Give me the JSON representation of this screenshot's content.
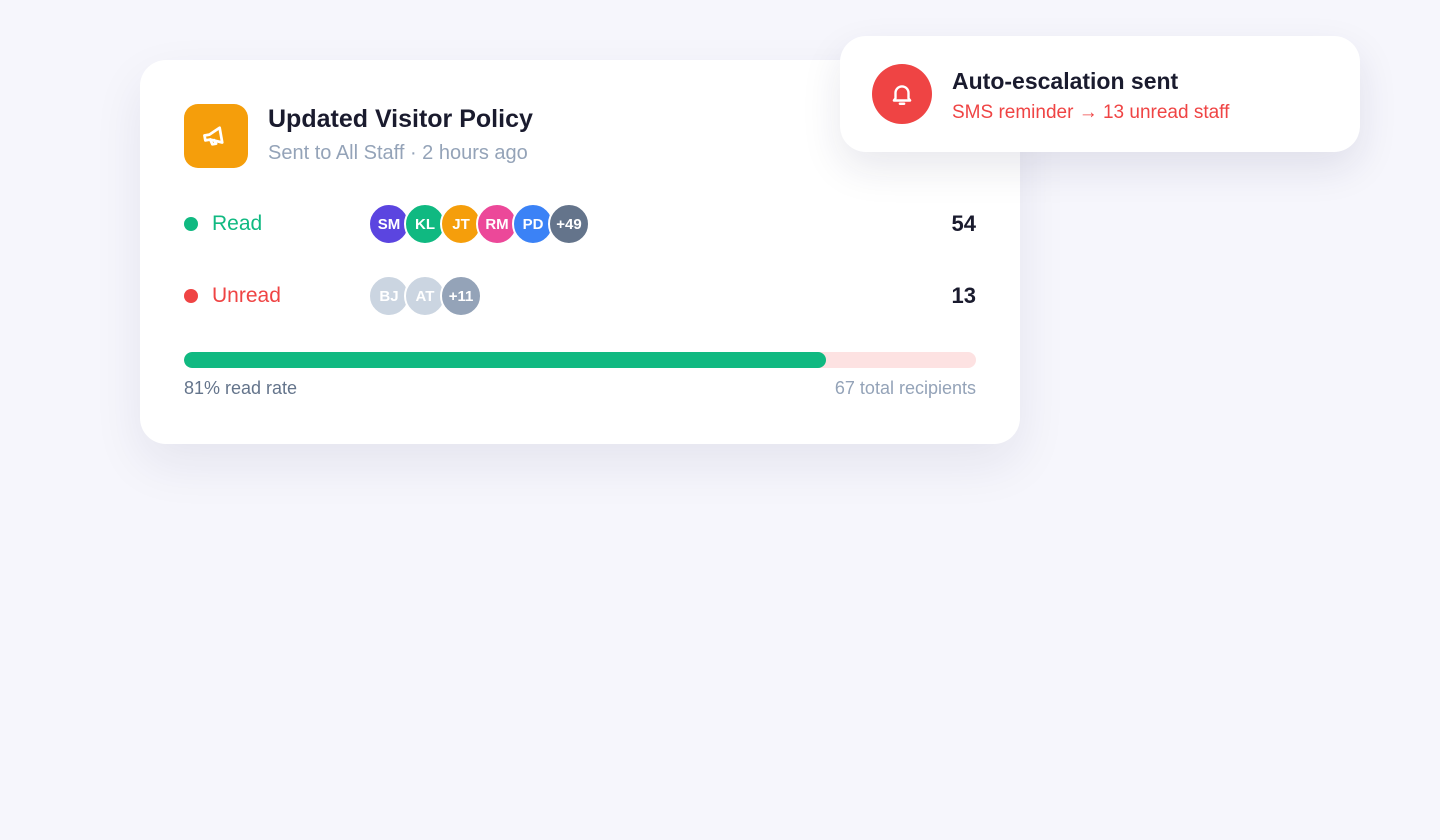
{
  "announcement": {
    "title": "Updated Visitor Policy",
    "subtitle": "Sent to All Staff · 2 hours ago",
    "icon": "megaphone-icon",
    "read": {
      "label": "Read",
      "count": "54",
      "color": "#10b981",
      "avatars": [
        {
          "initials": "SM",
          "color": "#5b45e0"
        },
        {
          "initials": "KL",
          "color": "#10b981"
        },
        {
          "initials": "JT",
          "color": "#f59e0b"
        },
        {
          "initials": "RM",
          "color": "#ec4899"
        },
        {
          "initials": "PD",
          "color": "#3b82f6"
        },
        {
          "initials": "+49",
          "color": "#64748b"
        }
      ]
    },
    "unread": {
      "label": "Unread",
      "count": "13",
      "color": "#ef4444",
      "avatars": [
        {
          "initials": "BJ",
          "color": "#cbd5e1"
        },
        {
          "initials": "AT",
          "color": "#cbd5e1"
        },
        {
          "initials": "+11",
          "color": "#94a3b8"
        }
      ]
    },
    "progress_percent": 81,
    "read_rate_label": "81% read rate",
    "total_label": "67 total recipients"
  },
  "toast": {
    "icon": "bell-icon",
    "title": "Auto-escalation sent",
    "subtitle": "SMS reminder → 13 unread staff"
  }
}
